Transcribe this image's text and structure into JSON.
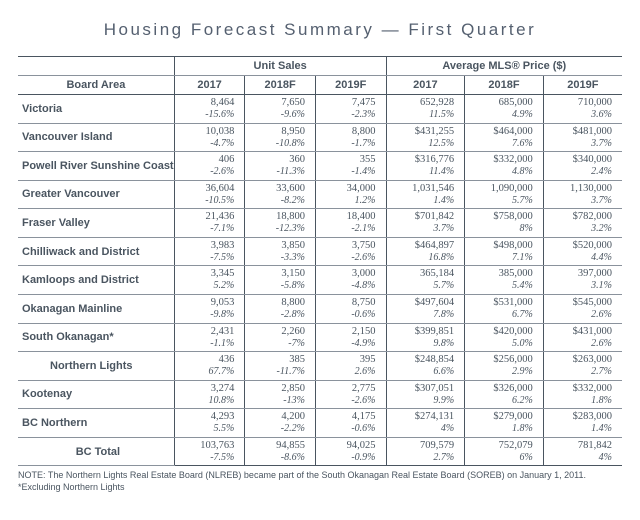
{
  "title": "Housing Forecast Summary — First Quarter",
  "headers": {
    "board_area": "Board Area",
    "unit_sales": "Unit Sales",
    "avg_price": "Average MLS® Price ($)",
    "y2017": "2017",
    "y2018": "2018F",
    "y2019": "2019F"
  },
  "rows": [
    {
      "label": "Victoria",
      "us": {
        "v17": "8,464",
        "p17": "-15.6%",
        "v18": "7,650",
        "p18": "-9.6%",
        "v19": "7,475",
        "p19": "-2.3%"
      },
      "pr": {
        "v17": "652,928",
        "p17": "11.5%",
        "v18": "685,000",
        "p18": "4.9%",
        "v19": "710,000",
        "p19": "3.6%"
      }
    },
    {
      "label": "Vancouver Island",
      "us": {
        "v17": "10,038",
        "p17": "-4.7%",
        "v18": "8,950",
        "p18": "-10.8%",
        "v19": "8,800",
        "p19": "-1.7%"
      },
      "pr": {
        "v17": "$431,255",
        "p17": "12.5%",
        "v18": "$464,000",
        "p18": "7.6%",
        "v19": "$481,000",
        "p19": "3.7%"
      }
    },
    {
      "label": "Powell River Sunshine Coast",
      "us": {
        "v17": "406",
        "p17": "-2.6%",
        "v18": "360",
        "p18": "-11.3%",
        "v19": "355",
        "p19": "-1.4%"
      },
      "pr": {
        "v17": "$316,776",
        "p17": "11.4%",
        "v18": "$332,000",
        "p18": "4.8%",
        "v19": "$340,000",
        "p19": "2.4%"
      }
    },
    {
      "label": "Greater Vancouver",
      "us": {
        "v17": "36,604",
        "p17": "-10.5%",
        "v18": "33,600",
        "p18": "-8.2%",
        "v19": "34,000",
        "p19": "1.2%"
      },
      "pr": {
        "v17": "1,031,546",
        "p17": "1.4%",
        "v18": "1,090,000",
        "p18": "5.7%",
        "v19": "1,130,000",
        "p19": "3.7%"
      }
    },
    {
      "label": "Fraser Valley",
      "us": {
        "v17": "21,436",
        "p17": "-7.1%",
        "v18": "18,800",
        "p18": "-12.3%",
        "v19": "18,400",
        "p19": "-2.1%"
      },
      "pr": {
        "v17": "$701,842",
        "p17": "3.7%",
        "v18": "$758,000",
        "p18": "8%",
        "v19": "$782,000",
        "p19": "3.2%"
      }
    },
    {
      "label": "Chilliwack and District",
      "us": {
        "v17": "3,983",
        "p17": "-7.5%",
        "v18": "3,850",
        "p18": "-3.3%",
        "v19": "3,750",
        "p19": "-2.6%"
      },
      "pr": {
        "v17": "$464,897",
        "p17": "16.8%",
        "v18": "$498,000",
        "p18": "7.1%",
        "v19": "$520,000",
        "p19": "4.4%"
      }
    },
    {
      "label": "Kamloops and District",
      "us": {
        "v17": "3,345",
        "p17": "5.2%",
        "v18": "3,150",
        "p18": "-5.8%",
        "v19": "3,000",
        "p19": "-4.8%"
      },
      "pr": {
        "v17": "365,184",
        "p17": "5.7%",
        "v18": "385,000",
        "p18": "5.4%",
        "v19": "397,000",
        "p19": "3.1%"
      }
    },
    {
      "label": "Okanagan Mainline",
      "us": {
        "v17": "9,053",
        "p17": "-9.8%",
        "v18": "8,800",
        "p18": "-2.8%",
        "v19": "8,750",
        "p19": "-0.6%"
      },
      "pr": {
        "v17": "$497,604",
        "p17": "7.8%",
        "v18": "$531,000",
        "p18": "6.7%",
        "v19": "$545,000",
        "p19": "2.6%"
      }
    },
    {
      "label": "South Okanagan*",
      "us": {
        "v17": "2,431",
        "p17": "-1.1%",
        "v18": "2,260",
        "p18": "-7%",
        "v19": "2,150",
        "p19": "-4.9%"
      },
      "pr": {
        "v17": "$399,851",
        "p17": "9.8%",
        "v18": "$420,000",
        "p18": "5.0%",
        "v19": "$431,000",
        "p19": "2.6%"
      }
    },
    {
      "label": "Northern Lights",
      "indent": true,
      "us": {
        "v17": "436",
        "p17": "67.7%",
        "v18": "385",
        "p18": "-11.7%",
        "v19": "395",
        "p19": "2.6%"
      },
      "pr": {
        "v17": "$248,854",
        "p17": "6.6%",
        "v18": "$256,000",
        "p18": "2.9%",
        "v19": "$263,000",
        "p19": "2.7%"
      }
    },
    {
      "label": "Kootenay",
      "us": {
        "v17": "3,274",
        "p17": "10.8%",
        "v18": "2,850",
        "p18": "-13%",
        "v19": "2,775",
        "p19": "-2.6%"
      },
      "pr": {
        "v17": "$307,051",
        "p17": "9.9%",
        "v18": "$326,000",
        "p18": "6.2%",
        "v19": "$332,000",
        "p19": "1.8%"
      }
    },
    {
      "label": "BC Northern",
      "us": {
        "v17": "4,293",
        "p17": "5.5%",
        "v18": "4,200",
        "p18": "-2.2%",
        "v19": "4,175",
        "p19": "-0.6%"
      },
      "pr": {
        "v17": "$274,131",
        "p17": "4%",
        "v18": "$279,000",
        "p18": "1.8%",
        "v19": "$283,000",
        "p19": "1.4%"
      }
    },
    {
      "label": "BC Total",
      "center": true,
      "us": {
        "v17": "103,763",
        "p17": "-7.5%",
        "v18": "94,855",
        "p18": "-8.6%",
        "v19": "94,025",
        "p19": "-0.9%"
      },
      "pr": {
        "v17": "709,579",
        "p17": "2.7%",
        "v18": "752,079",
        "p18": "6%",
        "v19": "781,842",
        "p19": "4%"
      }
    }
  ],
  "notes": {
    "line1": "NOTE: The Northern Lights Real Estate Board (NLREB) became part of the South Okanagan Real Estate Board (SOREB) on January 1, 2011.",
    "line2": "*Excluding Northern Lights"
  }
}
